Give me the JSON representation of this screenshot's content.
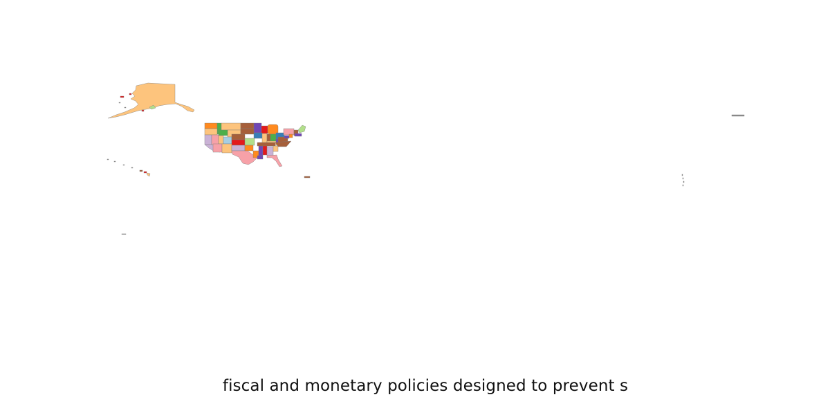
{
  "map": {
    "caption": "fiscal and monetary policies designed to prevent s",
    "palette": {
      "orange_light": "#fdc47d",
      "orange": "#ff8a1f",
      "green": "#4daf4a",
      "green_light": "#b2df8a",
      "blue_light": "#a6cee3",
      "blue": "#377eb8",
      "red": "#e31a1c",
      "pink": "#f7a1a8",
      "purple": "#7047b5",
      "lavender": "#cab2d6",
      "brown": "#a65f3a"
    }
  }
}
